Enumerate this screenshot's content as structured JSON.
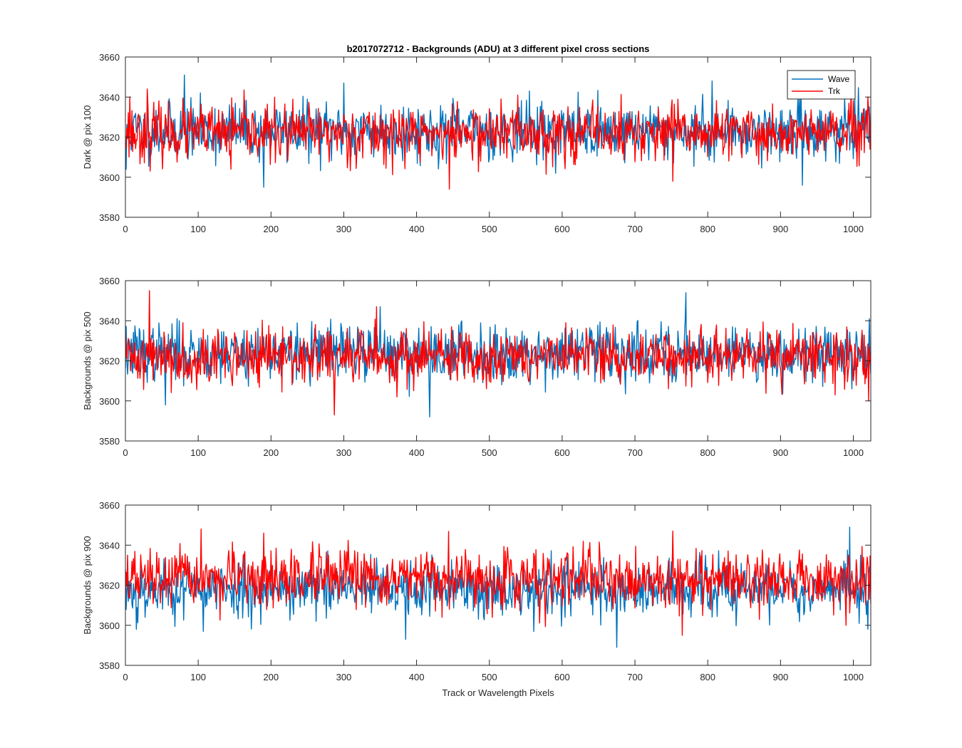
{
  "chart_data": {
    "title": "b2017072712 - Backgrounds (ADU) at 3 different pixel cross sections",
    "xlabel": "Track or Wavelength Pixels",
    "legend": {
      "placement": "top-right",
      "entries": [
        "Wave",
        "Trk"
      ]
    },
    "series_colors": {
      "Wave": "#0072BD",
      "Trk": "#FF0000"
    },
    "panels": [
      {
        "type": "line",
        "ylabel": "Dark @ pix 100",
        "xlim": [
          0,
          1024
        ],
        "ylim": [
          3580,
          3660
        ],
        "xticks": [
          0,
          100,
          200,
          300,
          400,
          500,
          600,
          700,
          800,
          900,
          1000
        ],
        "yticks": [
          3580,
          3600,
          3620,
          3640,
          3660
        ],
        "show_legend": true,
        "series": [
          {
            "name": "Wave",
            "mean": 3623,
            "noise": 7,
            "seed": 11,
            "extremes": [
              [
                1,
                3604
              ],
              [
                81,
                3651
              ],
              [
                190,
                3595
              ],
              [
                300,
                3647
              ],
              [
                555,
                3643
              ],
              [
                806,
                3648
              ],
              [
                930,
                3596
              ]
            ]
          },
          {
            "name": "Trk",
            "mean": 3622,
            "noise": 7,
            "seed": 23,
            "extremes": [
              [
                6,
                3640
              ],
              [
                30,
                3644
              ],
              [
                145,
                3604
              ],
              [
                445,
                3594
              ],
              [
                539,
                3641
              ],
              [
                752,
                3598
              ],
              [
                1020,
                3640
              ]
            ]
          }
        ]
      },
      {
        "type": "line",
        "ylabel": "Backgrounds @ pix 500",
        "xlim": [
          0,
          1024
        ],
        "ylim": [
          3580,
          3660
        ],
        "xticks": [
          0,
          100,
          200,
          300,
          400,
          500,
          600,
          700,
          800,
          900,
          1000
        ],
        "yticks": [
          3580,
          3600,
          3620,
          3640,
          3660
        ],
        "show_legend": false,
        "series": [
          {
            "name": "Wave",
            "mean": 3624,
            "noise": 7,
            "seed": 37,
            "extremes": [
              [
                55,
                3598
              ],
              [
                350,
                3647
              ],
              [
                418,
                3592
              ],
              [
                770,
                3654
              ],
              [
                1022,
                3641
              ]
            ]
          },
          {
            "name": "Trk",
            "mean": 3622,
            "noise": 7,
            "seed": 41,
            "extremes": [
              [
                33,
                3655
              ],
              [
                287,
                3593
              ],
              [
                345,
                3647
              ],
              [
                975,
                3603
              ],
              [
                1021,
                3600
              ]
            ]
          }
        ]
      },
      {
        "type": "line",
        "ylabel": "Backgrounds @ pix 900",
        "xlim": [
          0,
          1024
        ],
        "ylim": [
          3580,
          3660
        ],
        "xticks": [
          0,
          100,
          200,
          300,
          400,
          500,
          600,
          700,
          800,
          900,
          1000
        ],
        "yticks": [
          3580,
          3600,
          3620,
          3640,
          3660
        ],
        "show_legend": false,
        "series": [
          {
            "name": "Wave",
            "mean": 3618,
            "noise": 7,
            "seed": 53,
            "extremes": [
              [
                15,
                3598
              ],
              [
                107,
                3597
              ],
              [
                385,
                3593
              ],
              [
                675,
                3589
              ],
              [
                995,
                3649
              ]
            ]
          },
          {
            "name": "Trk",
            "mean": 3623,
            "noise": 7,
            "seed": 67,
            "extremes": [
              [
                104,
                3648
              ],
              [
                190,
                3646
              ],
              [
                752,
                3647
              ],
              [
                765,
                3595
              ],
              [
                990,
                3600
              ]
            ]
          }
        ]
      }
    ]
  }
}
